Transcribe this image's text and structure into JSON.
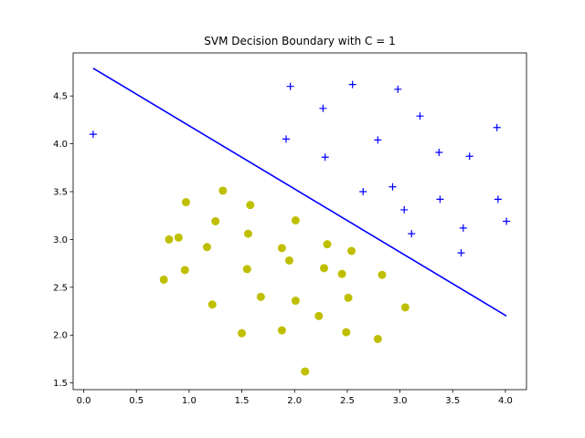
{
  "chart_data": {
    "type": "scatter",
    "title": "SVM Decision Boundary with C = 1",
    "xlabel": "",
    "ylabel": "",
    "xlim": [
      -0.1,
      4.2
    ],
    "ylim": [
      1.43,
      4.95
    ],
    "xticks": [
      0.0,
      0.5,
      1.0,
      1.5,
      2.0,
      2.5,
      3.0,
      3.5,
      4.0
    ],
    "xtick_labels": [
      "0.0",
      "0.5",
      "1.0",
      "1.5",
      "2.0",
      "2.5",
      "3.0",
      "3.5",
      "4.0"
    ],
    "yticks": [
      1.5,
      2.0,
      2.5,
      3.0,
      3.5,
      4.0,
      4.5
    ],
    "ytick_labels": [
      "1.5",
      "2.0",
      "2.5",
      "3.0",
      "3.5",
      "4.0",
      "4.5"
    ],
    "grid": false,
    "series": [
      {
        "marker": "plus",
        "color": "#0000ff",
        "points": [
          [
            0.09,
            4.1
          ],
          [
            1.96,
            4.6
          ],
          [
            2.55,
            4.62
          ],
          [
            2.98,
            4.57
          ],
          [
            2.27,
            4.37
          ],
          [
            3.19,
            4.29
          ],
          [
            1.92,
            4.05
          ],
          [
            2.79,
            4.04
          ],
          [
            3.92,
            4.17
          ],
          [
            3.37,
            3.91
          ],
          [
            2.29,
            3.86
          ],
          [
            3.66,
            3.87
          ],
          [
            2.65,
            3.5
          ],
          [
            2.93,
            3.55
          ],
          [
            3.38,
            3.42
          ],
          [
            3.93,
            3.42
          ],
          [
            3.04,
            3.31
          ],
          [
            4.01,
            3.19
          ],
          [
            3.6,
            3.12
          ],
          [
            3.11,
            3.06
          ],
          [
            3.58,
            2.86
          ]
        ]
      },
      {
        "marker": "circle",
        "color": "#bfbf00",
        "points": [
          [
            1.32,
            3.51
          ],
          [
            0.97,
            3.39
          ],
          [
            1.58,
            3.36
          ],
          [
            1.25,
            3.19
          ],
          [
            2.01,
            3.2
          ],
          [
            1.56,
            3.06
          ],
          [
            0.81,
            3.0
          ],
          [
            0.9,
            3.02
          ],
          [
            1.17,
            2.92
          ],
          [
            2.31,
            2.95
          ],
          [
            1.88,
            2.91
          ],
          [
            2.54,
            2.88
          ],
          [
            1.95,
            2.78
          ],
          [
            0.96,
            2.68
          ],
          [
            1.55,
            2.69
          ],
          [
            2.28,
            2.7
          ],
          [
            2.45,
            2.64
          ],
          [
            2.83,
            2.63
          ],
          [
            0.76,
            2.58
          ],
          [
            1.68,
            2.4
          ],
          [
            2.51,
            2.39
          ],
          [
            2.01,
            2.36
          ],
          [
            1.22,
            2.32
          ],
          [
            3.05,
            2.29
          ],
          [
            2.23,
            2.2
          ],
          [
            1.88,
            2.05
          ],
          [
            1.5,
            2.02
          ],
          [
            2.49,
            2.03
          ],
          [
            2.79,
            1.96
          ],
          [
            2.1,
            1.62
          ]
        ]
      }
    ],
    "decision_boundary": {
      "color": "#0000ff",
      "points": [
        [
          0.09,
          4.79
        ],
        [
          4.01,
          2.2
        ]
      ]
    }
  }
}
